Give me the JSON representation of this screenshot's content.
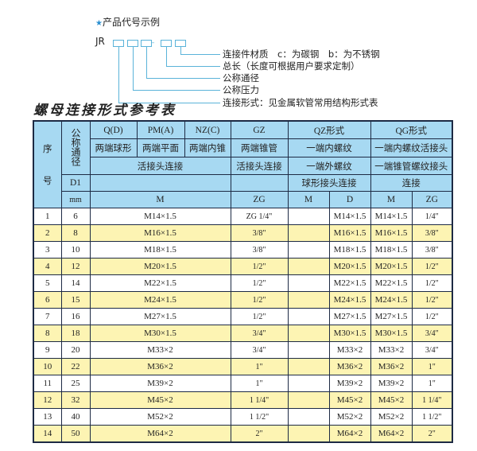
{
  "code_example": {
    "title": "产品代号示例",
    "star_icon": "star-icon",
    "prefix": "JR",
    "labels": [
      "连接件材质　c：为碳钢　b：为不锈钢",
      "总长（长度可根据用户要求定制）",
      "公称通径",
      "公称压力",
      "连接形式：见金属软管常用结构形式表"
    ]
  },
  "table_title": "螺母连接形式参考表",
  "colors": {
    "header_bg": "#a7d9f2",
    "row_alt_bg": "#fdf4b3",
    "border": "#1d2a44",
    "accent": "#5ab3d9"
  },
  "header": {
    "seq": "序号",
    "seq_top": "序",
    "seq_bottom": "号",
    "nominal": "公称通径",
    "d1": "D1",
    "mm": "mm",
    "row1": [
      "Q(D)",
      "PM(A)",
      "NZ(C)",
      "GZ",
      "QZ形式",
      "QG形式"
    ],
    "row2": [
      "两端球形",
      "两端平面",
      "两端内锥",
      "两端锥管",
      "一端内螺纹",
      "一端内螺纹活接头"
    ],
    "row3": [
      "活接头连接",
      "活接头连接",
      "一端外螺纹",
      "一端锥管螺纹接头"
    ],
    "row4": [
      "球形接头连接",
      "连接"
    ],
    "row5": [
      "M",
      "ZG",
      "M",
      "D",
      "M",
      "ZG"
    ]
  },
  "rows": [
    {
      "no": "1",
      "dn": "6",
      "m": "M14×1.5",
      "gz": "ZG 1/4\"",
      "qz_m": "",
      "qz_d": "M14×1.5",
      "qg_m": "M14×1.5",
      "qg_zg": "1/4\""
    },
    {
      "no": "2",
      "dn": "8",
      "m": "M16×1.5",
      "gz": "3/8\"",
      "qz_m": "",
      "qz_d": "M16×1.5",
      "qg_m": "M16×1.5",
      "qg_zg": "3/8\""
    },
    {
      "no": "3",
      "dn": "10",
      "m": "M18×1.5",
      "gz": "3/8\"",
      "qz_m": "",
      "qz_d": "M18×1.5",
      "qg_m": "M18×1.5",
      "qg_zg": "3/8\""
    },
    {
      "no": "4",
      "dn": "12",
      "m": "M20×1.5",
      "gz": "1/2\"",
      "qz_m": "",
      "qz_d": "M20×1.5",
      "qg_m": "M20×1.5",
      "qg_zg": "1/2\""
    },
    {
      "no": "5",
      "dn": "14",
      "m": "M22×1.5",
      "gz": "1/2\"",
      "qz_m": "",
      "qz_d": "M22×1.5",
      "qg_m": "M22×1.5",
      "qg_zg": "1/2\""
    },
    {
      "no": "6",
      "dn": "15",
      "m": "M24×1.5",
      "gz": "1/2\"",
      "qz_m": "",
      "qz_d": "M24×1.5",
      "qg_m": "M24×1.5",
      "qg_zg": "1/2\""
    },
    {
      "no": "7",
      "dn": "16",
      "m": "M27×1.5",
      "gz": "1/2\"",
      "qz_m": "",
      "qz_d": "M27×1.5",
      "qg_m": "M27×1.5",
      "qg_zg": "1/2\""
    },
    {
      "no": "8",
      "dn": "18",
      "m": "M30×1.5",
      "gz": "3/4\"",
      "qz_m": "",
      "qz_d": "M30×1.5",
      "qg_m": "M30×1.5",
      "qg_zg": "3/4\""
    },
    {
      "no": "9",
      "dn": "20",
      "m": "M33×2",
      "gz": "3/4\"",
      "qz_m": "",
      "qz_d": "M33×2",
      "qg_m": "M33×2",
      "qg_zg": "3/4\""
    },
    {
      "no": "10",
      "dn": "22",
      "m": "M36×2",
      "gz": "1\"",
      "qz_m": "",
      "qz_d": "M36×2",
      "qg_m": "M36×2",
      "qg_zg": "1\""
    },
    {
      "no": "11",
      "dn": "25",
      "m": "M39×2",
      "gz": "1\"",
      "qz_m": "",
      "qz_d": "M39×2",
      "qg_m": "M39×2",
      "qg_zg": "1\""
    },
    {
      "no": "12",
      "dn": "32",
      "m": "M45×2",
      "gz": "1 1/4\"",
      "qz_m": "",
      "qz_d": "M45×2",
      "qg_m": "M45×2",
      "qg_zg": "1 1/4\""
    },
    {
      "no": "13",
      "dn": "40",
      "m": "M52×2",
      "gz": "1 1/2\"",
      "qz_m": "",
      "qz_d": "M52×2",
      "qg_m": "M52×2",
      "qg_zg": "1 1/2\""
    },
    {
      "no": "14",
      "dn": "50",
      "m": "M64×2",
      "gz": "2\"",
      "qz_m": "",
      "qz_d": "M64×2",
      "qg_m": "M64×2",
      "qg_zg": "2\""
    }
  ]
}
